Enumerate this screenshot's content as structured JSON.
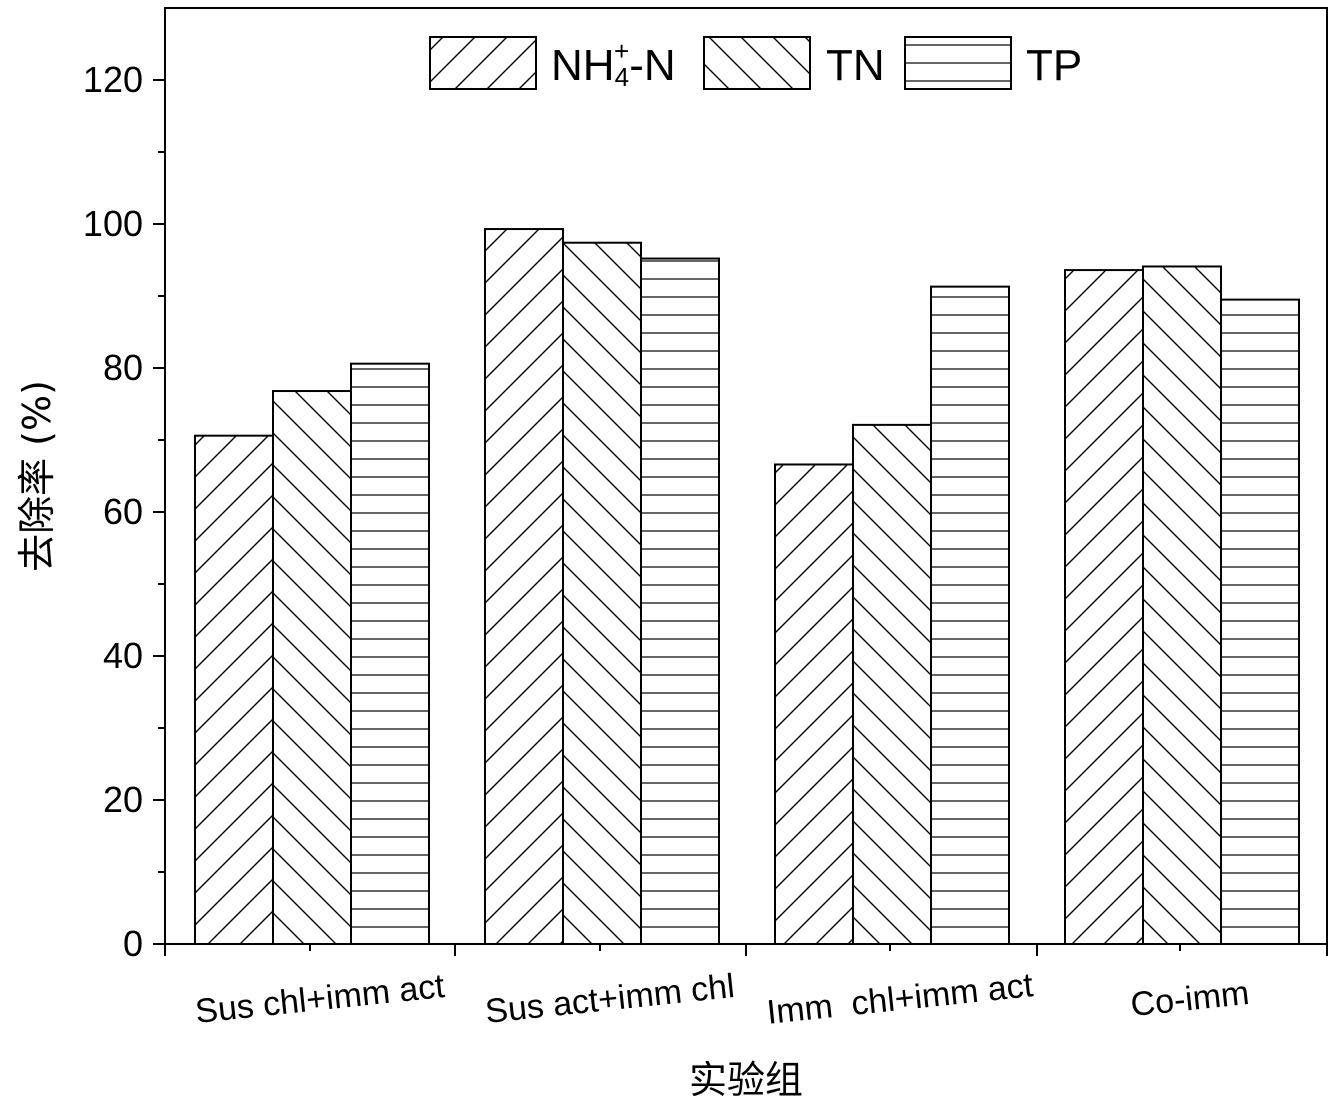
{
  "chart_data": {
    "type": "bar",
    "xlabel": "实验组",
    "ylabel": "去除率 (%)",
    "ylim": [
      0,
      130
    ],
    "yticks": [
      0,
      20,
      40,
      60,
      80,
      100,
      120
    ],
    "grid": false,
    "legend_position": "top",
    "categories": [
      "Sus chl+imm act",
      "Sus act+imm chl",
      "Imm  chl+imm act",
      "Co-imm"
    ],
    "series": [
      {
        "name": "NH4+-N",
        "name_main": "NH",
        "name_sub": "4",
        "name_sup": "+",
        "name_tail": "-N",
        "pattern": "forward-diagonal",
        "values": [
          70.6,
          99.3,
          66.6,
          93.6
        ]
      },
      {
        "name": "TN",
        "pattern": "back-diagonal",
        "values": [
          76.8,
          97.4,
          72.1,
          94.1
        ]
      },
      {
        "name": "TP",
        "pattern": "horizontal",
        "values": [
          80.6,
          95.2,
          91.3,
          89.5
        ]
      }
    ]
  }
}
